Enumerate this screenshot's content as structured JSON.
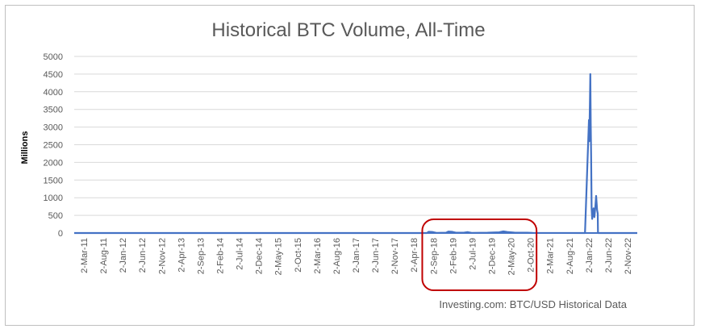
{
  "chart_data": {
    "type": "line",
    "title": "Historical BTC Volume, All-Time",
    "ylabel": "Millions",
    "xlabel": "",
    "source_note": "Investing.com: BTC/USD Historical Data",
    "ylim": [
      0,
      5000
    ],
    "yticks": [
      0,
      500,
      1000,
      1500,
      2000,
      2500,
      3000,
      3500,
      4000,
      4500,
      5000
    ],
    "grid": true,
    "legend": "none",
    "series_color": "#4472c4",
    "annotation_color": "#c00000",
    "x_range": [
      "2011-03-02",
      "2023-02-02"
    ],
    "x_tick_labels": [
      "2-Mar-11",
      "2-Aug-11",
      "2-Jan-12",
      "2-Jun-12",
      "2-Nov-12",
      "2-Apr-13",
      "2-Sep-13",
      "2-Feb-14",
      "2-Jul-14",
      "2-Dec-14",
      "2-May-15",
      "2-Oct-15",
      "2-Mar-16",
      "2-Aug-16",
      "2-Jan-17",
      "2-Jun-17",
      "2-Nov-17",
      "2-Apr-18",
      "2-Sep-18",
      "2-Feb-19",
      "2-Jul-19",
      "2-Dec-19",
      "2-May-20",
      "2-Oct-20",
      "2-Mar-21",
      "2-Aug-21",
      "2-Jan-22",
      "2-Jun-22",
      "2-Nov-22"
    ],
    "annotation_box": {
      "from": "2018-07-15",
      "to": "2020-12-15",
      "label": ""
    },
    "series": [
      {
        "points": [
          [
            "2011-03-02",
            0
          ],
          [
            "2018-08-20",
            0
          ],
          [
            "2018-09-02",
            35
          ],
          [
            "2018-10-01",
            30
          ],
          [
            "2018-11-01",
            5
          ],
          [
            "2019-01-15",
            10
          ],
          [
            "2019-02-02",
            40
          ],
          [
            "2019-03-01",
            35
          ],
          [
            "2019-04-01",
            10
          ],
          [
            "2019-06-01",
            8
          ],
          [
            "2019-07-02",
            25
          ],
          [
            "2019-08-01",
            5
          ],
          [
            "2019-12-02",
            10
          ],
          [
            "2020-03-01",
            20
          ],
          [
            "2020-04-02",
            45
          ],
          [
            "2020-05-02",
            30
          ],
          [
            "2020-07-01",
            10
          ],
          [
            "2020-10-02",
            8
          ],
          [
            "2020-11-15",
            5
          ],
          [
            "2021-12-25",
            0
          ],
          [
            "2022-01-24",
            3200
          ],
          [
            "2022-01-27",
            2600
          ],
          [
            "2022-02-01",
            3700
          ],
          [
            "2022-02-04",
            4500
          ],
          [
            "2022-02-07",
            3100
          ],
          [
            "2022-02-10",
            2200
          ],
          [
            "2022-02-14",
            700
          ],
          [
            "2022-02-18",
            400
          ],
          [
            "2022-02-23",
            550
          ],
          [
            "2022-03-01",
            700
          ],
          [
            "2022-03-07",
            450
          ],
          [
            "2022-03-14",
            700
          ],
          [
            "2022-03-21",
            1050
          ],
          [
            "2022-03-28",
            650
          ],
          [
            "2022-04-02",
            550
          ],
          [
            "2022-04-04",
            0
          ],
          [
            "2023-02-02",
            0
          ]
        ]
      }
    ]
  }
}
